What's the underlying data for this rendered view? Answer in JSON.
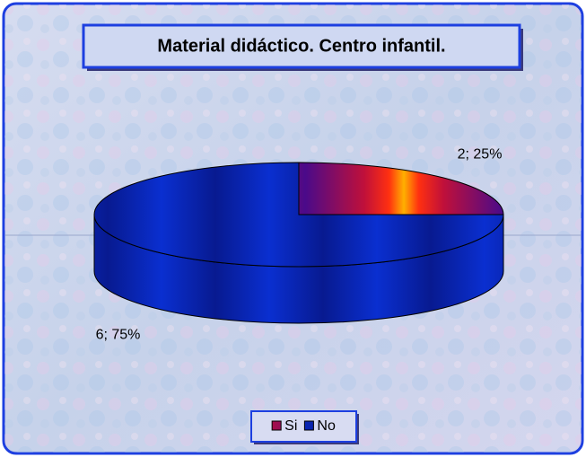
{
  "chart_data": {
    "type": "pie3d",
    "title": "Material didáctico. Centro infantil.",
    "categories": [
      "Si",
      "No"
    ],
    "values": [
      2,
      6
    ],
    "value_labels": [
      "2; 25%",
      "6; 75%"
    ],
    "colors": [
      "#c0103a",
      "#0a2fd0"
    ],
    "legend": "bottom"
  }
}
